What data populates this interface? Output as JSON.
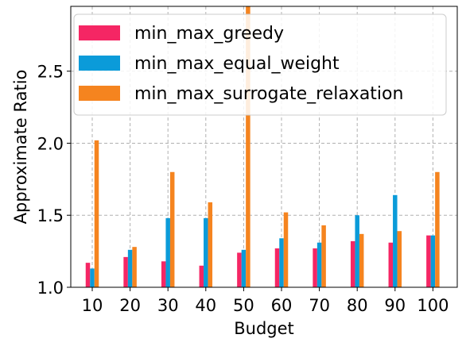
{
  "chart_data": {
    "type": "bar",
    "xlabel": "Budget",
    "ylabel": "Approximate Ratio",
    "categories": [
      "10",
      "20",
      "30",
      "40",
      "50",
      "60",
      "70",
      "80",
      "90",
      "100"
    ],
    "ylim": [
      1.0,
      2.95
    ],
    "yticks": [
      "1.0",
      "1.5",
      "2.0",
      "2.5"
    ],
    "grid": true,
    "legend_position": "top-left",
    "series": [
      {
        "name": "min_max_greedy",
        "color": "#f52664",
        "values": [
          1.17,
          1.21,
          1.18,
          1.15,
          1.24,
          1.27,
          1.27,
          1.32,
          1.31,
          1.36
        ]
      },
      {
        "name": "min_max_equal_weight",
        "color": "#0b9bd9",
        "values": [
          1.13,
          1.26,
          1.48,
          1.48,
          1.26,
          1.34,
          1.31,
          1.5,
          1.64,
          1.36
        ]
      },
      {
        "name": "min_max_surrogate_relaxation",
        "color": "#f5841f",
        "values": [
          2.02,
          1.28,
          1.8,
          1.59,
          2.95,
          1.52,
          1.43,
          1.37,
          1.39,
          1.8
        ]
      }
    ]
  }
}
